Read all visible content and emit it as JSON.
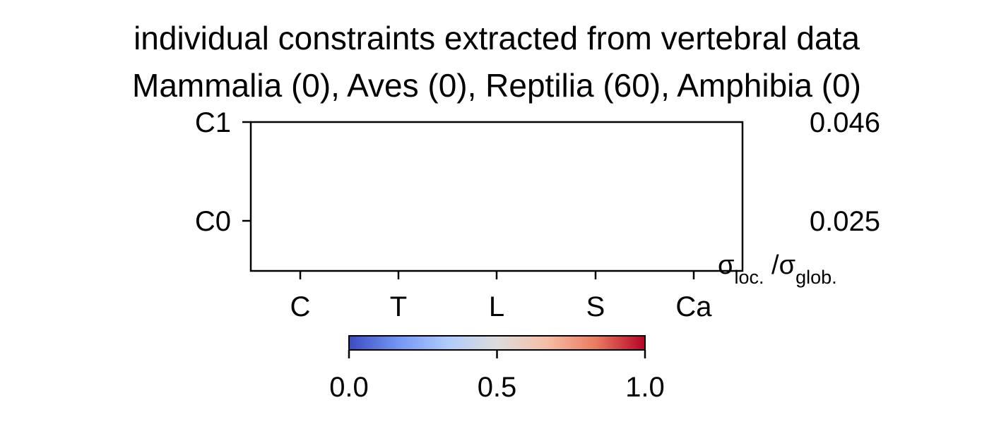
{
  "chart_data": {
    "type": "heatmap",
    "title": "individual constraints extracted from vertebral data",
    "subtitle": "Mammalia (0), Aves (0), Reptilia (60), Amphibia (0)",
    "x_categories": [
      "C",
      "T",
      "L",
      "S",
      "Ca"
    ],
    "y_categories": [
      "C0",
      "C1"
    ],
    "row_values": [
      "0.025",
      "0.046"
    ],
    "row_value_label": {
      "base1": "σ",
      "sub1": "loc.",
      "sep": " /",
      "base2": "σ",
      "sub2": "glob."
    },
    "cells": [],
    "colorbar": {
      "colormap": "coolwarm",
      "range": [
        0.0,
        1.0
      ],
      "ticks": [
        "0.0",
        "0.5",
        "1.0"
      ],
      "stops": [
        "#3b4cc0",
        "#7396f5",
        "#b0cbfc",
        "#dddcdc",
        "#f6bfa6",
        "#ea7b60",
        "#b40426"
      ]
    }
  }
}
